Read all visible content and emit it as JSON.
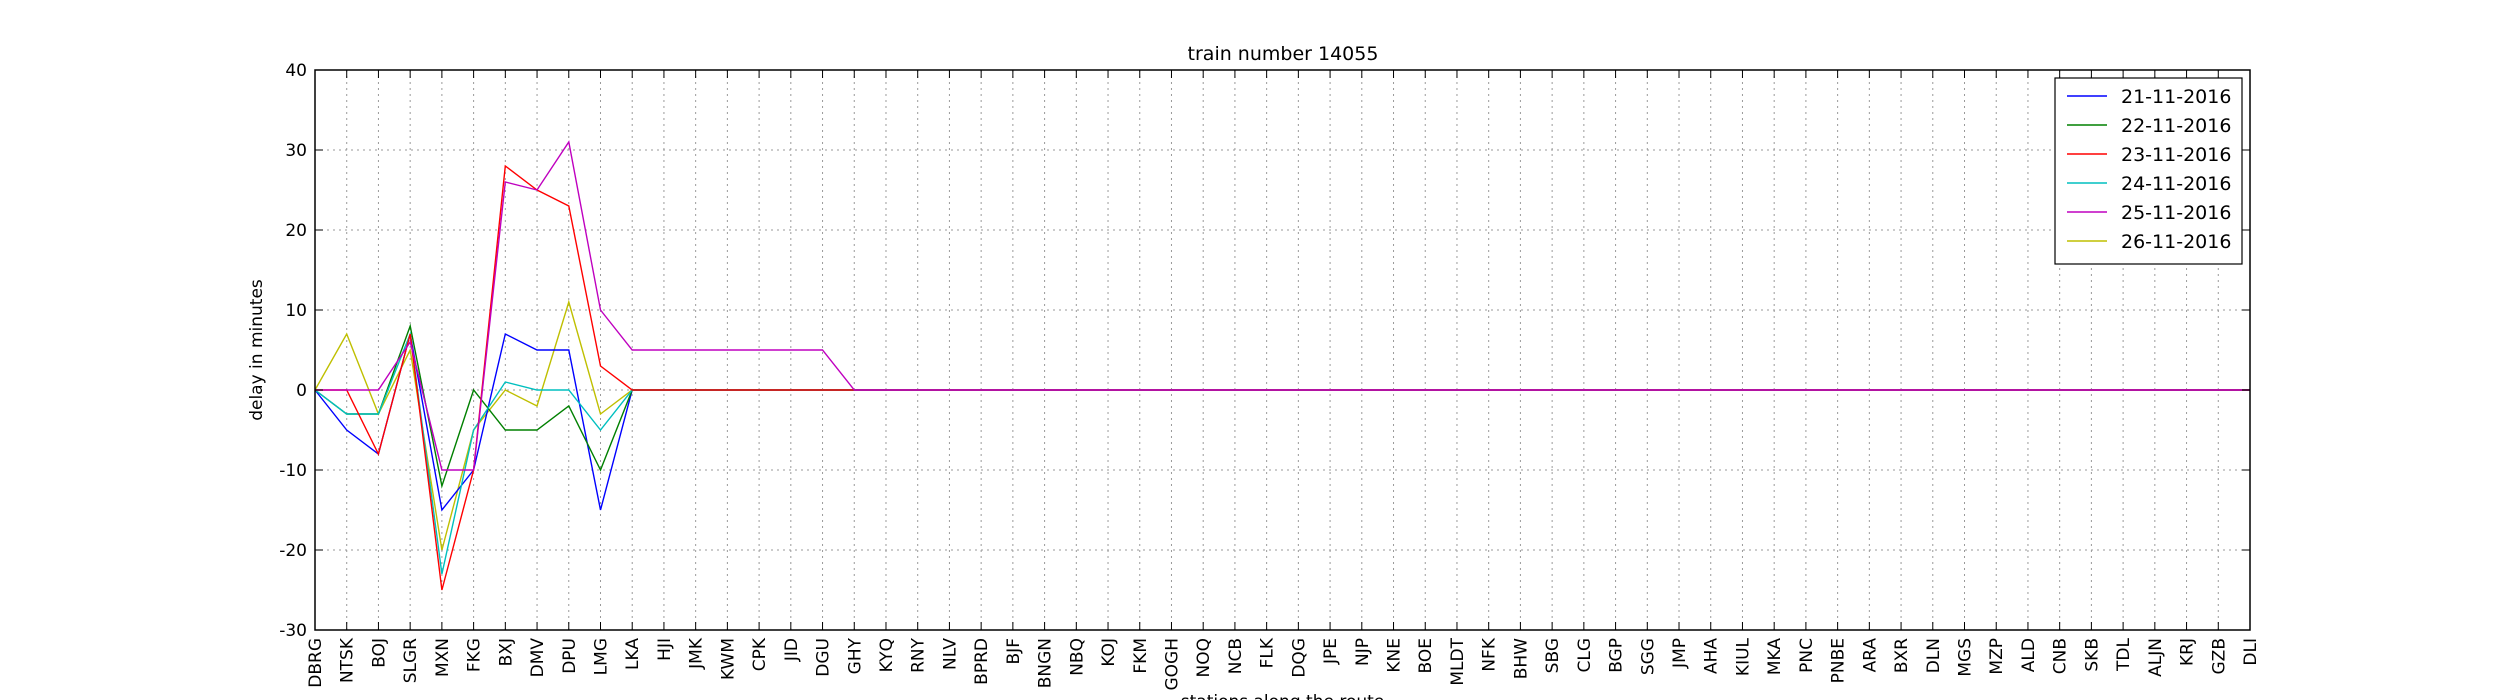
{
  "chart_data": {
    "type": "line",
    "title": "train number 14055",
    "xlabel": "stations along the route",
    "ylabel": "delay in minutes",
    "ylim": [
      -30,
      40
    ],
    "yticks": [
      -30,
      -20,
      -10,
      0,
      10,
      20,
      30,
      40
    ],
    "grid": true,
    "legend_position": "top-right",
    "categories": [
      "DBRG",
      "NTSK",
      "BOJ",
      "SLGR",
      "MXN",
      "FKG",
      "BXJ",
      "DMV",
      "DPU",
      "LMG",
      "LKA",
      "HJI",
      "JMK",
      "KWM",
      "CPK",
      "JID",
      "DGU",
      "GHY",
      "KYQ",
      "RNY",
      "NLV",
      "BPRD",
      "BJF",
      "BNGN",
      "NBQ",
      "KOJ",
      "FKM",
      "GOGH",
      "NOQ",
      "NCB",
      "FLK",
      "DQG",
      "JPE",
      "NJP",
      "KNE",
      "BOE",
      "MLDT",
      "NFK",
      "BHW",
      "SBG",
      "CLG",
      "BGP",
      "SGG",
      "JMP",
      "AHA",
      "KIUL",
      "MKA",
      "PNC",
      "PNBE",
      "ARA",
      "BXR",
      "DLN",
      "MGS",
      "MZP",
      "ALD",
      "CNB",
      "SKB",
      "TDL",
      "ALJN",
      "KRJ",
      "GZB",
      "DLI"
    ],
    "series": [
      {
        "name": "21-11-2016",
        "color": "#0000ff",
        "head": [
          0,
          -5,
          -8,
          7,
          -15,
          -10,
          7,
          5,
          5,
          -15,
          0
        ]
      },
      {
        "name": "22-11-2016",
        "color": "#008000",
        "head": [
          0,
          -3,
          -3,
          8,
          -12,
          0,
          -5,
          -5,
          -2,
          -10,
          0
        ]
      },
      {
        "name": "23-11-2016",
        "color": "#ff0000",
        "head": [
          0,
          0,
          -8,
          7,
          -25,
          -10,
          28,
          25,
          23,
          3,
          0
        ]
      },
      {
        "name": "24-11-2016",
        "color": "#00bfbf",
        "head": [
          0,
          -3,
          -3,
          7,
          -23,
          -5,
          1,
          0,
          0,
          -5,
          0
        ]
      },
      {
        "name": "25-11-2016",
        "color": "#bf00bf",
        "head": [
          0,
          0,
          0,
          6,
          -10,
          -10,
          26,
          25,
          31,
          10,
          5,
          5,
          5,
          5,
          5,
          5,
          5,
          0
        ]
      },
      {
        "name": "26-11-2016",
        "color": "#bfbf00",
        "head": [
          0,
          7,
          -3,
          5,
          -20,
          -5,
          0,
          -2,
          11,
          -3,
          0
        ]
      }
    ],
    "note_tail_value": 0
  }
}
